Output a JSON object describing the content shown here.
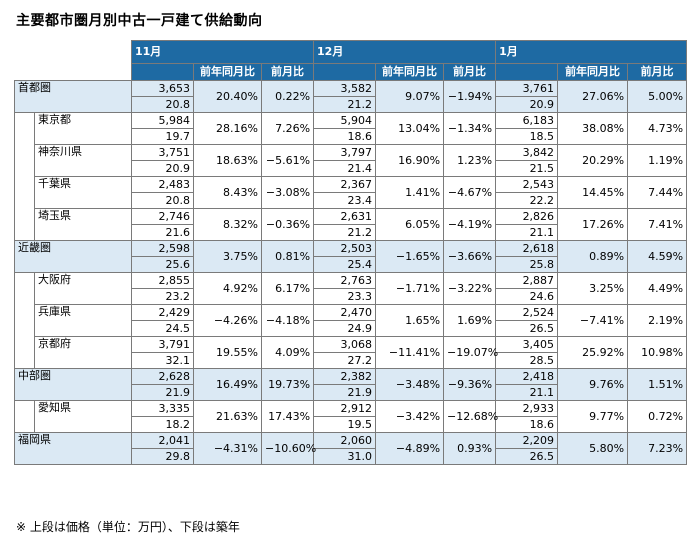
{
  "title": "主要都市圏月別中古一戸建て供給動向",
  "note": "※ 上段は価格（単位：万円）、下段は築年",
  "months": [
    "11月",
    "12月",
    "1月"
  ],
  "sub_headers": {
    "yoy": "前年同月比",
    "mom": "前月比"
  },
  "rows": [
    {
      "name": "首都圏",
      "region": true,
      "d": [
        [
          "3,653",
          "20.8",
          "20.40%",
          "0.22%"
        ],
        [
          "3,582",
          "21.2",
          "9.07%",
          "−1.94%"
        ],
        [
          "3,761",
          "20.9",
          "27.06%",
          "5.00%"
        ]
      ]
    },
    {
      "name": "東京都",
      "region": false,
      "d": [
        [
          "5,984",
          "19.7",
          "28.16%",
          "7.26%"
        ],
        [
          "5,904",
          "18.6",
          "13.04%",
          "−1.34%"
        ],
        [
          "6,183",
          "18.5",
          "38.08%",
          "4.73%"
        ]
      ]
    },
    {
      "name": "神奈川県",
      "region": false,
      "d": [
        [
          "3,751",
          "20.9",
          "18.63%",
          "−5.61%"
        ],
        [
          "3,797",
          "21.4",
          "16.90%",
          "1.23%"
        ],
        [
          "3,842",
          "21.5",
          "20.29%",
          "1.19%"
        ]
      ]
    },
    {
      "name": "千葉県",
      "region": false,
      "d": [
        [
          "2,483",
          "20.8",
          "8.43%",
          "−3.08%"
        ],
        [
          "2,367",
          "23.4",
          "1.41%",
          "−4.67%"
        ],
        [
          "2,543",
          "22.2",
          "14.45%",
          "7.44%"
        ]
      ]
    },
    {
      "name": "埼玉県",
      "region": false,
      "d": [
        [
          "2,746",
          "21.6",
          "8.32%",
          "−0.36%"
        ],
        [
          "2,631",
          "21.2",
          "6.05%",
          "−4.19%"
        ],
        [
          "2,826",
          "21.1",
          "17.26%",
          "7.41%"
        ]
      ]
    },
    {
      "name": "近畿圏",
      "region": true,
      "d": [
        [
          "2,598",
          "25.6",
          "3.75%",
          "0.81%"
        ],
        [
          "2,503",
          "25.4",
          "−1.65%",
          "−3.66%"
        ],
        [
          "2,618",
          "25.8",
          "0.89%",
          "4.59%"
        ]
      ]
    },
    {
      "name": "大阪府",
      "region": false,
      "d": [
        [
          "2,855",
          "23.2",
          "4.92%",
          "6.17%"
        ],
        [
          "2,763",
          "23.3",
          "−1.71%",
          "−3.22%"
        ],
        [
          "2,887",
          "24.6",
          "3.25%",
          "4.49%"
        ]
      ]
    },
    {
      "name": "兵庫県",
      "region": false,
      "d": [
        [
          "2,429",
          "24.5",
          "−4.26%",
          "−4.18%"
        ],
        [
          "2,470",
          "24.9",
          "1.65%",
          "1.69%"
        ],
        [
          "2,524",
          "26.5",
          "−7.41%",
          "2.19%"
        ]
      ]
    },
    {
      "name": "京都府",
      "region": false,
      "d": [
        [
          "3,791",
          "32.1",
          "19.55%",
          "4.09%"
        ],
        [
          "3,068",
          "27.2",
          "−11.41%",
          "−19.07%"
        ],
        [
          "3,405",
          "28.5",
          "25.92%",
          "10.98%"
        ]
      ]
    },
    {
      "name": "中部圏",
      "region": true,
      "d": [
        [
          "2,628",
          "21.9",
          "16.49%",
          "19.73%"
        ],
        [
          "2,382",
          "21.9",
          "−3.48%",
          "−9.36%"
        ],
        [
          "2,418",
          "21.1",
          "9.76%",
          "1.51%"
        ]
      ]
    },
    {
      "name": "愛知県",
      "region": false,
      "d": [
        [
          "3,335",
          "18.2",
          "21.63%",
          "17.43%"
        ],
        [
          "2,912",
          "19.5",
          "−3.42%",
          "−12.68%"
        ],
        [
          "2,933",
          "18.6",
          "9.77%",
          "0.72%"
        ]
      ]
    },
    {
      "name": "福岡県",
      "region": true,
      "d": [
        [
          "2,041",
          "29.8",
          "−4.31%",
          "−10.60%"
        ],
        [
          "2,060",
          "31.0",
          "−4.89%",
          "0.93%"
        ],
        [
          "2,209",
          "26.5",
          "5.80%",
          "7.23%"
        ]
      ]
    }
  ]
}
